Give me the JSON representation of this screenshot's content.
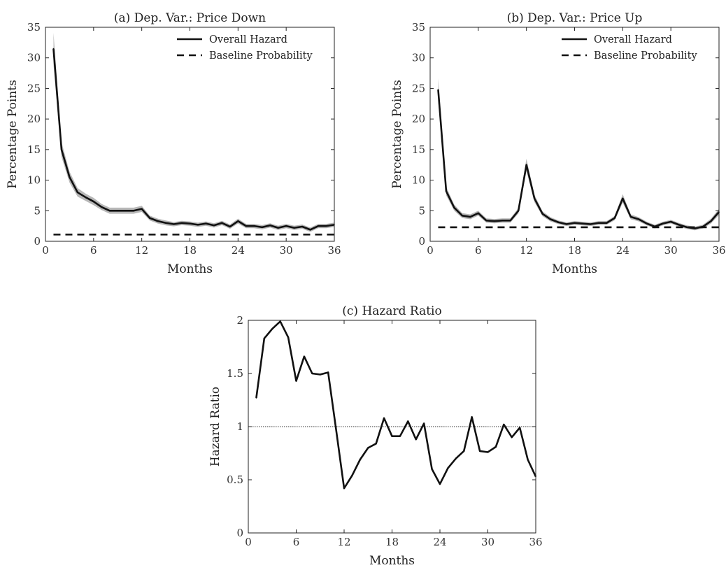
{
  "chart_data": [
    {
      "id": "a",
      "type": "line",
      "title": "(a) Dep. Var.: Price Down",
      "xlabel": "Months",
      "ylabel": "Percentage Points",
      "xlim": [
        0,
        36
      ],
      "ylim": [
        0,
        35
      ],
      "xticks": [
        0,
        6,
        12,
        18,
        24,
        30,
        36
      ],
      "yticks": [
        0,
        5,
        10,
        15,
        20,
        25,
        30,
        35
      ],
      "legend": "top-right",
      "series": [
        {
          "name": "Overall Hazard",
          "style": "solid",
          "band": true,
          "x": [
            1,
            2,
            3,
            4,
            5,
            6,
            7,
            8,
            9,
            10,
            11,
            12,
            13,
            14,
            15,
            16,
            17,
            18,
            19,
            20,
            21,
            22,
            23,
            24,
            25,
            26,
            27,
            28,
            29,
            30,
            31,
            32,
            33,
            34,
            35,
            36
          ],
          "values": [
            31.5,
            15,
            10.5,
            8,
            7.2,
            6.5,
            5.6,
            5,
            5,
            5,
            5,
            5.3,
            3.8,
            3.3,
            3,
            2.8,
            3,
            2.9,
            2.7,
            2.9,
            2.6,
            3,
            2.4,
            3.3,
            2.5,
            2.5,
            2.3,
            2.6,
            2.2,
            2.5,
            2.2,
            2.4,
            1.9,
            2.5,
            2.5,
            2.7
          ],
          "band_width": [
            2.6,
            1.2,
            0.9,
            0.7,
            0.6,
            0.6,
            0.5,
            0.5,
            0.5,
            0.5,
            0.5,
            0.5,
            0.4,
            0.4,
            0.4,
            0.35,
            0.35,
            0.35,
            0.35,
            0.35,
            0.35,
            0.35,
            0.35,
            0.4,
            0.35,
            0.35,
            0.35,
            0.35,
            0.35,
            0.35,
            0.35,
            0.35,
            0.35,
            0.35,
            0.35,
            0.35
          ]
        },
        {
          "name": "Baseline Probability",
          "style": "dashed",
          "x": [
            1,
            36
          ],
          "values": [
            1.1,
            1.1
          ]
        }
      ]
    },
    {
      "id": "b",
      "type": "line",
      "title": "(b) Dep. Var.: Price Up",
      "xlabel": "Months",
      "ylabel": "Percentage Points",
      "xlim": [
        0,
        36
      ],
      "ylim": [
        0,
        35
      ],
      "xticks": [
        0,
        6,
        12,
        18,
        24,
        30,
        36
      ],
      "yticks": [
        0,
        5,
        10,
        15,
        20,
        25,
        30,
        35
      ],
      "legend": "top-right",
      "series": [
        {
          "name": "Overall Hazard",
          "style": "solid",
          "band": true,
          "x": [
            1,
            2,
            3,
            4,
            5,
            6,
            7,
            8,
            9,
            10,
            11,
            12,
            13,
            14,
            15,
            16,
            17,
            18,
            19,
            20,
            21,
            22,
            23,
            24,
            25,
            26,
            27,
            28,
            29,
            30,
            31,
            32,
            33,
            34,
            35,
            36
          ],
          "values": [
            24.8,
            8.2,
            5.5,
            4.2,
            4,
            4.6,
            3.4,
            3.3,
            3.4,
            3.4,
            5,
            12.5,
            7,
            4.5,
            3.6,
            3.1,
            2.8,
            3,
            2.9,
            2.8,
            3,
            3,
            3.8,
            7,
            4,
            3.6,
            2.9,
            2.4,
            2.9,
            3.2,
            2.7,
            2.3,
            2.1,
            2.4,
            3.3,
            4.8
          ],
          "band_width": [
            1.8,
            0.7,
            0.5,
            0.4,
            0.4,
            0.4,
            0.35,
            0.35,
            0.35,
            0.35,
            0.45,
            1,
            0.6,
            0.4,
            0.35,
            0.3,
            0.3,
            0.3,
            0.3,
            0.3,
            0.3,
            0.3,
            0.35,
            0.7,
            0.4,
            0.35,
            0.3,
            0.3,
            0.3,
            0.3,
            0.3,
            0.3,
            0.3,
            0.3,
            0.4,
            0.5
          ]
        },
        {
          "name": "Baseline Probability",
          "style": "dashed",
          "x": [
            1,
            36
          ],
          "values": [
            2.3,
            2.3
          ]
        }
      ]
    },
    {
      "id": "c",
      "type": "line",
      "title": "(c) Hazard Ratio",
      "xlabel": "Months",
      "ylabel": "Hazard Ratio",
      "xlim": [
        0,
        36
      ],
      "ylim": [
        0,
        2
      ],
      "xticks": [
        0,
        6,
        12,
        18,
        24,
        30,
        36
      ],
      "yticks": [
        0,
        0.5,
        1,
        1.5,
        2
      ],
      "reference_line": 1,
      "series": [
        {
          "style": "solid",
          "x": [
            1,
            2,
            3,
            4,
            5,
            6,
            7,
            8,
            9,
            10,
            11,
            12,
            13,
            14,
            15,
            16,
            17,
            18,
            19,
            20,
            21,
            22,
            23,
            24,
            25,
            26,
            27,
            28,
            29,
            30,
            31,
            32,
            33,
            34,
            35,
            36
          ],
          "values": [
            1.27,
            1.83,
            1.92,
            1.99,
            1.84,
            1.43,
            1.66,
            1.5,
            1.49,
            1.51,
            0.97,
            0.42,
            0.54,
            0.69,
            0.8,
            0.84,
            1.08,
            0.91,
            0.91,
            1.05,
            0.88,
            1.03,
            0.6,
            0.46,
            0.61,
            0.7,
            0.77,
            1.09,
            0.77,
            0.76,
            0.81,
            1.02,
            0.9,
            0.99,
            0.69,
            0.53
          ]
        }
      ]
    }
  ]
}
